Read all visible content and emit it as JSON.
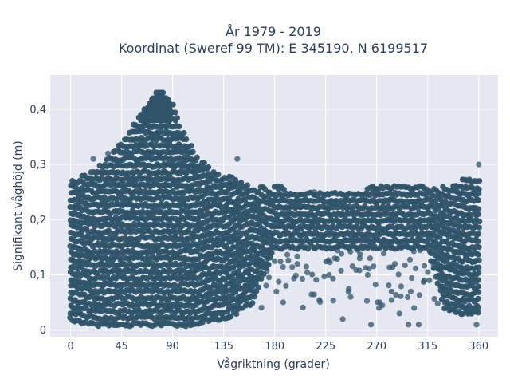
{
  "chart_data": {
    "type": "scatter",
    "title_line1": "År 1979 - 2019",
    "title_line2": "Koordinat (Sweref 99 TM): E 345190, N 6199517",
    "xlabel": "Vågriktning (grader)",
    "ylabel": "Signifikant våghöjd (m)",
    "xlim": [
      -18,
      377
    ],
    "ylim": [
      -0.012,
      0.462
    ],
    "xticks": [
      0,
      45,
      90,
      135,
      180,
      225,
      270,
      315,
      360
    ],
    "xtick_labels": [
      "0",
      "45",
      "90",
      "135",
      "180",
      "225",
      "270",
      "315",
      "360"
    ],
    "yticks": [
      0,
      0.1,
      0.2,
      0.3,
      0.4
    ],
    "ytick_labels": [
      "0",
      "0,1",
      "0,2",
      "0,3",
      "0,4"
    ],
    "grid": true,
    "marker_color": "#2f5469",
    "background_color": "#e5e8f0",
    "envelope": {
      "x": [
        0,
        20,
        40,
        55,
        68,
        78,
        90,
        100,
        110,
        125,
        135,
        145,
        150,
        160,
        180,
        225,
        270,
        315,
        330,
        345,
        360
      ],
      "ymax": [
        0.27,
        0.29,
        0.33,
        0.37,
        0.41,
        0.44,
        0.41,
        0.36,
        0.32,
        0.29,
        0.28,
        0.28,
        0.27,
        0.26,
        0.26,
        0.25,
        0.26,
        0.26,
        0.26,
        0.27,
        0.28
      ],
      "ymin": [
        0.02,
        0.01,
        0.01,
        0.01,
        0.01,
        0.01,
        0.01,
        0.01,
        0.01,
        0.02,
        0.02,
        0.03,
        0.04,
        0.05,
        0.15,
        0.15,
        0.15,
        0.15,
        0.04,
        0.03,
        0.03
      ]
    },
    "outliers": [
      {
        "x": 147,
        "y": 0.31
      },
      {
        "x": 215,
        "y": 0.25
      },
      {
        "x": 240,
        "y": 0.02
      },
      {
        "x": 247,
        "y": 0.06
      },
      {
        "x": 265,
        "y": 0.01
      },
      {
        "x": 272,
        "y": 0.04
      },
      {
        "x": 283,
        "y": 0.07
      },
      {
        "x": 290,
        "y": 0.03
      },
      {
        "x": 303,
        "y": 0.04
      },
      {
        "x": 307,
        "y": 0.01
      },
      {
        "x": 312,
        "y": 0.09
      },
      {
        "x": 200,
        "y": 0.12
      },
      {
        "x": 228,
        "y": 0.1
      },
      {
        "x": 255,
        "y": 0.13
      },
      {
        "x": 190,
        "y": 0.08
      },
      {
        "x": 262,
        "y": 0.1
      },
      {
        "x": 286,
        "y": 0.12
      },
      {
        "x": 300,
        "y": 0.07
      },
      {
        "x": 233,
        "y": 0.13
      },
      {
        "x": 360,
        "y": 0.3
      },
      {
        "x": 358,
        "y": 0.01
      },
      {
        "x": 33,
        "y": 0.32
      },
      {
        "x": 20,
        "y": 0.31
      },
      {
        "x": 298,
        "y": 0.01
      }
    ]
  }
}
